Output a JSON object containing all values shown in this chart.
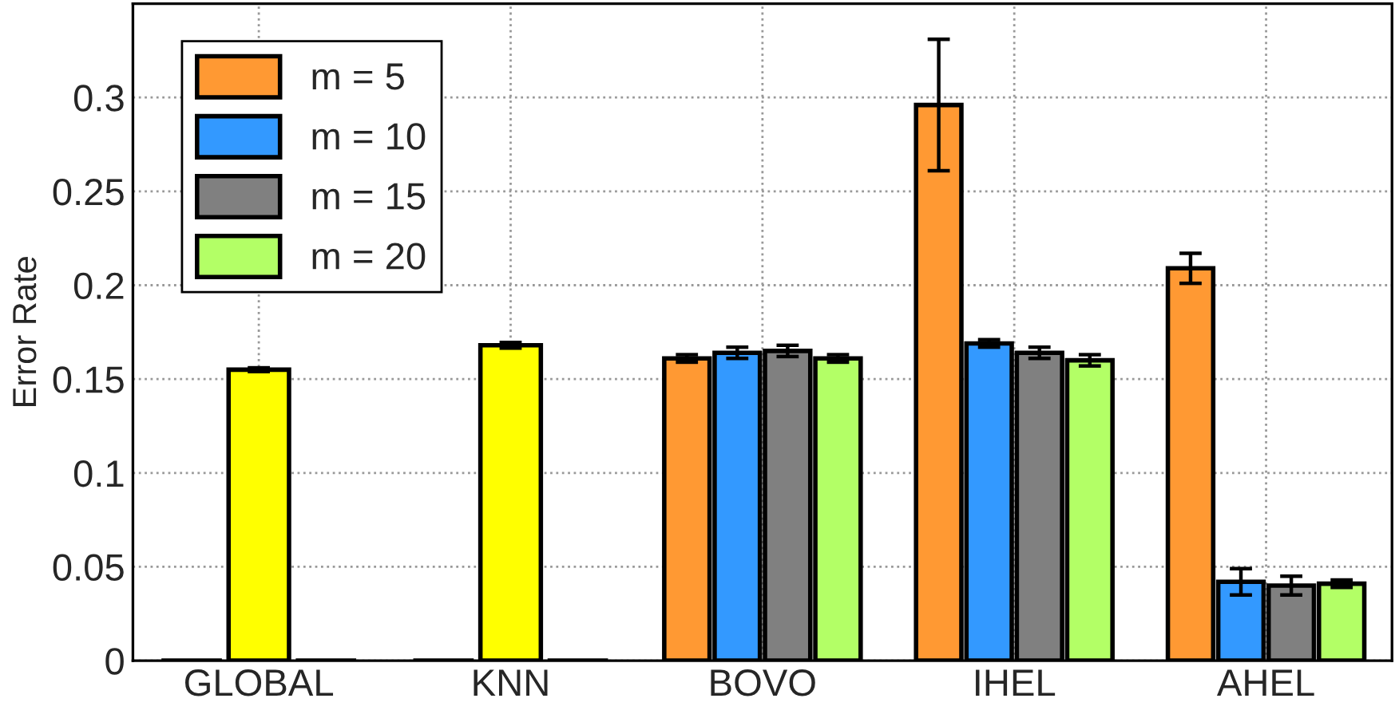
{
  "chart_data": {
    "type": "bar",
    "ylabel": "Error Rate",
    "categories": [
      "GLOBAL",
      "KNN",
      "BOVO",
      "IHEL",
      "AHEL"
    ],
    "series": [
      {
        "color": "#000000",
        "values": [
          0,
          0,
          null,
          null,
          null
        ]
      },
      {
        "name": "m = 5",
        "color": "#ff9933",
        "values": [
          null,
          null,
          0.161,
          0.296,
          0.209
        ],
        "errors": [
          null,
          null,
          0.002,
          0.035,
          0.008
        ]
      },
      {
        "color": "#ffff00",
        "values": [
          0.155,
          0.168,
          null,
          null,
          null
        ],
        "errors": [
          0.001,
          0.0015,
          null,
          null,
          null
        ]
      },
      {
        "name": "m = 10",
        "color": "#3399ff",
        "values": [
          null,
          null,
          0.164,
          0.169,
          0.042
        ],
        "errors": [
          null,
          null,
          0.003,
          0.002,
          0.007
        ]
      },
      {
        "name": "m = 15",
        "color": "#808080",
        "values": [
          null,
          null,
          0.165,
          0.164,
          0.04
        ],
        "errors": [
          null,
          null,
          0.003,
          0.003,
          0.005
        ]
      },
      {
        "name": "m = 20",
        "color": "#b3ff66",
        "values": [
          null,
          null,
          0.161,
          0.16,
          0.041
        ],
        "errors": [
          null,
          null,
          0.002,
          0.003,
          0.002
        ]
      },
      {
        "color": "#000000",
        "values": [
          0,
          0,
          null,
          null,
          null
        ]
      }
    ],
    "ylim": [
      0,
      0.35
    ],
    "yticks": [
      0,
      0.05,
      0.1,
      0.15,
      0.2,
      0.25,
      0.3
    ],
    "grid": true,
    "legend": "top left"
  }
}
